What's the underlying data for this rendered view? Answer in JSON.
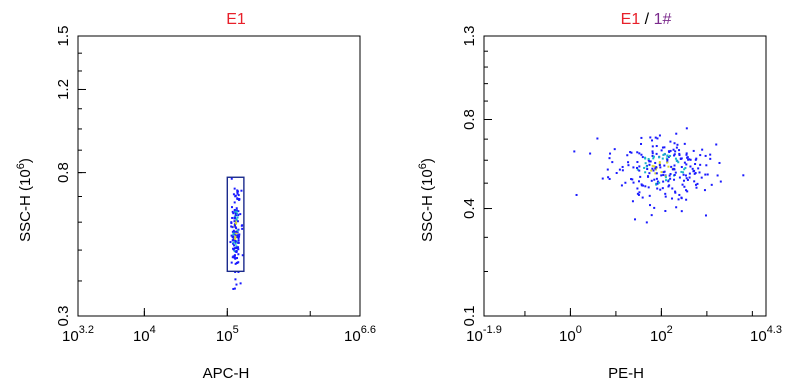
{
  "chart_data": [
    {
      "type": "scatter",
      "title": "E1",
      "xlabel": "APC-H",
      "ylabel": "SSC-H",
      "ylabel_exp": "6",
      "xscale": "log",
      "x_exp_range": [
        3.2,
        6.6
      ],
      "xticks": [
        {
          "base": "10",
          "exp": "3.2",
          "value_exp": 3.2
        },
        {
          "base": "10",
          "exp": "4",
          "value_exp": 4
        },
        {
          "base": "10",
          "exp": "5",
          "value_exp": 5
        },
        {
          "base": "10",
          "exp": "6.6",
          "value_exp": 6.6
        }
      ],
      "yscale": "sqrt",
      "ylim": [
        0.3,
        1.5
      ],
      "yticks": [
        {
          "label": "0.3",
          "value": 0.3
        },
        {
          "label": "0.8",
          "value": 0.8
        },
        {
          "label": "1.2",
          "value": 1.2
        },
        {
          "label": "1.5",
          "value": 1.5
        }
      ],
      "gate": {
        "x_exp": [
          5.0,
          5.2
        ],
        "y": [
          0.43,
          0.78
        ]
      },
      "cluster": {
        "x_exp_center": 5.1,
        "x_exp_spread": 0.03,
        "y_center": 0.57,
        "y_spread": 0.08,
        "count": 140
      },
      "grid": false
    },
    {
      "type": "scatter",
      "title_parts": [
        {
          "text": "E1",
          "role": "red"
        },
        {
          "text": " / ",
          "role": "sep"
        },
        {
          "text": "1#",
          "role": "purple"
        }
      ],
      "xlabel": "PE-H",
      "ylabel": "SSC-H",
      "ylabel_exp": "6",
      "xscale": "log",
      "x_exp_range": [
        -1.9,
        4.3
      ],
      "xticks": [
        {
          "base": "10",
          "exp": "-1.9",
          "value_exp": -1.9
        },
        {
          "base": "10",
          "exp": "0",
          "value_exp": 0
        },
        {
          "base": "10",
          "exp": "2",
          "value_exp": 2
        },
        {
          "base": "10",
          "exp": "4.3",
          "value_exp": 4.3
        }
      ],
      "yscale": "sqrt",
      "ylim": [
        0.1,
        1.3
      ],
      "yticks": [
        {
          "label": "0.1",
          "value": 0.1
        },
        {
          "label": "0.4",
          "value": 0.4
        },
        {
          "label": "0.8",
          "value": 0.8
        },
        {
          "label": "1.3",
          "value": 1.3
        }
      ],
      "cluster": {
        "x_exp_center": 2.0,
        "x_exp_spread": 0.55,
        "y_center": 0.56,
        "y_spread": 0.07,
        "count": 260
      },
      "grid": false
    }
  ],
  "colors": {
    "title_red": "#e8202a",
    "title_purple": "#7b2a8c",
    "gate": "#1a2a8c",
    "density_low": "#1a1aff",
    "density_mid": "#19b3c8",
    "density_high": "#d8d830"
  }
}
